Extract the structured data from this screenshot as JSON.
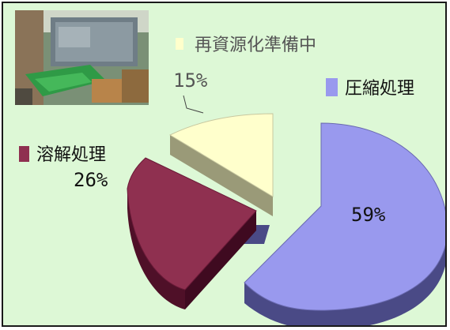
{
  "chart_data": {
    "type": "pie",
    "three_d": true,
    "exploded": true,
    "start": "12 o'clock, clockwise",
    "legend_placement": "labels beside slices",
    "slices": [
      {
        "label": "圧縮処理",
        "value": 59,
        "value_label": "59%",
        "color": "#9999ee",
        "side_color": "#4a4a86"
      },
      {
        "label": "溶解処理",
        "value": 26,
        "value_label": "26%",
        "color": "#8f3050",
        "side_color": "#4f1028"
      },
      {
        "label": "再資源化準備中",
        "value": 15,
        "value_label": "15%",
        "color": "#ffffcc",
        "side_color": "#9a9a78"
      }
    ]
  },
  "photo": {
    "description_icon": "machine-photo"
  },
  "colors": {
    "background": "#ddf8d6",
    "frame": "#1a1a1a"
  }
}
